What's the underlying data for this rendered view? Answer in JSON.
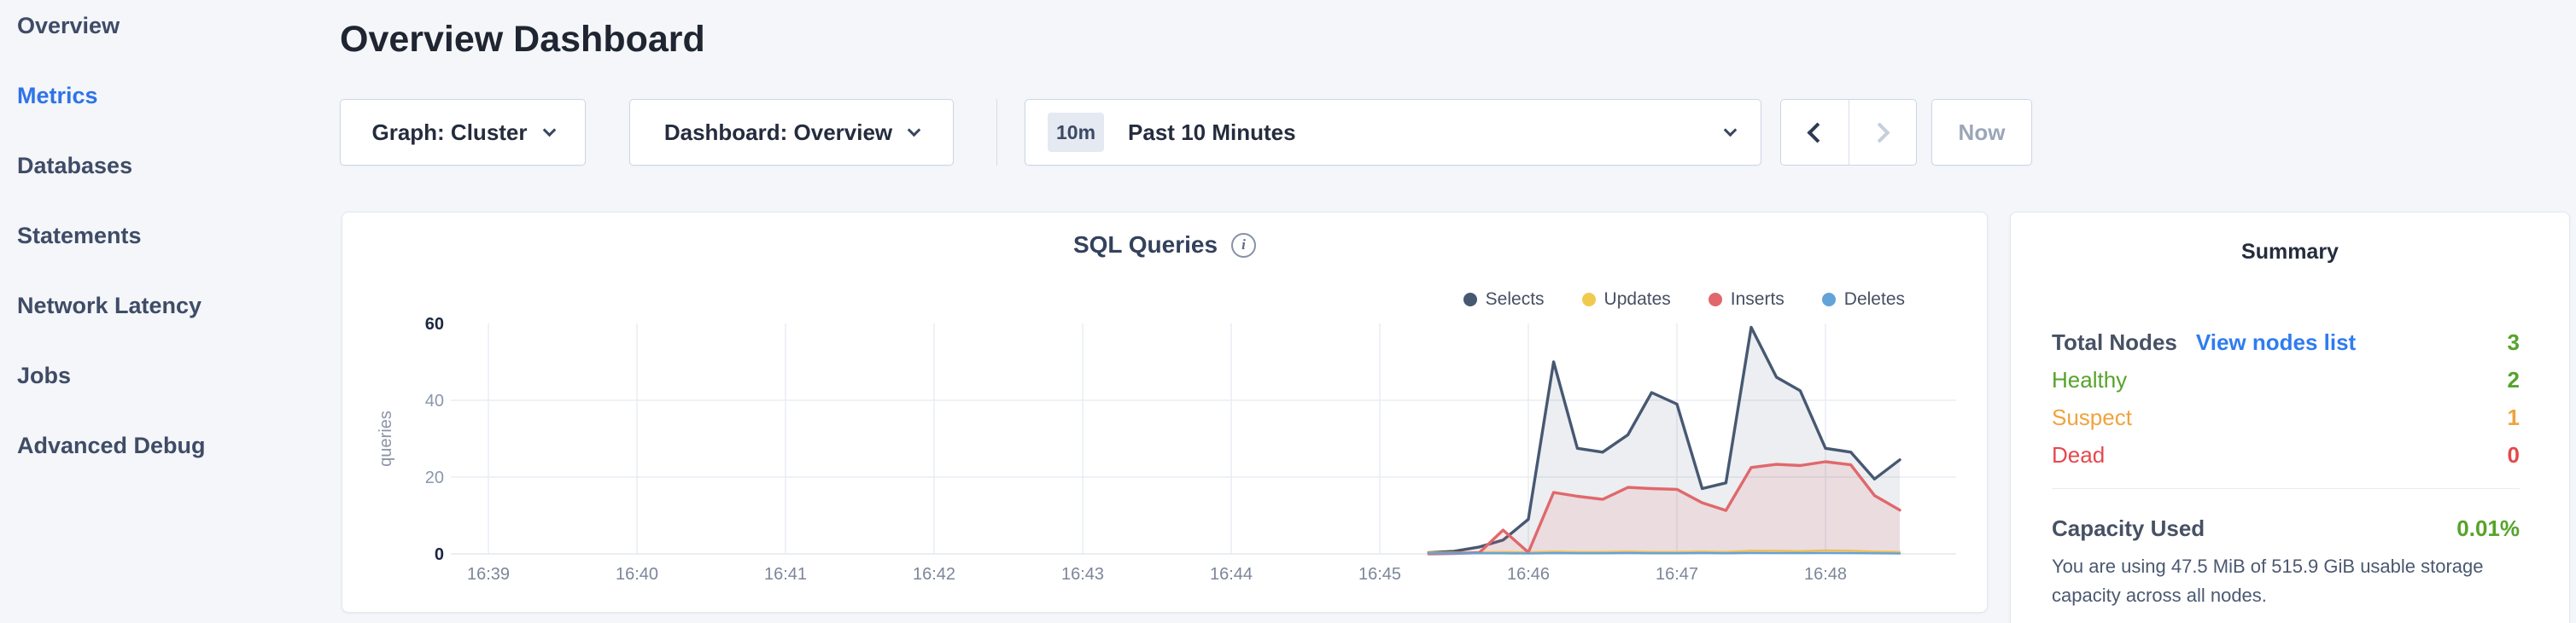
{
  "page": {
    "background": "#f4f6fa",
    "accent_blue": "#2f73e8"
  },
  "sidebar": {
    "items": [
      {
        "label": "Overview",
        "active": false
      },
      {
        "label": "Metrics",
        "active": true
      },
      {
        "label": "Databases",
        "active": false
      },
      {
        "label": "Statements",
        "active": false
      },
      {
        "label": "Network Latency",
        "active": false
      },
      {
        "label": "Jobs",
        "active": false
      },
      {
        "label": "Advanced Debug",
        "active": false
      }
    ]
  },
  "header": {
    "title": "Overview Dashboard"
  },
  "controls": {
    "graph_dropdown_label": "Graph: Cluster",
    "dashboard_dropdown_label": "Dashboard: Overview",
    "time_badge": "10m",
    "time_label": "Past 10 Minutes",
    "now_label": "Now",
    "prev_enabled": true,
    "next_enabled": false,
    "icons": {
      "dropdown": "chevron-down",
      "prev": "chevron-left",
      "next": "chevron-right",
      "info_glyph": "i"
    }
  },
  "chart_data": {
    "type": "area",
    "title": "SQL Queries",
    "ylabel": "queries",
    "ylim": [
      0,
      60
    ],
    "y_ticks": [
      0,
      20,
      40,
      60
    ],
    "y_ticks_bold": [
      0,
      60
    ],
    "x_ticks": [
      "16:39",
      "16:40",
      "16:41",
      "16:42",
      "16:43",
      "16:44",
      "16:45",
      "16:46",
      "16:47",
      "16:48"
    ],
    "x_note": "x values are minutes after 16:39, samples every 10s starting 16:45:20",
    "x": [
      6.33,
      6.5,
      6.67,
      6.83,
      7.0,
      7.17,
      7.33,
      7.5,
      7.67,
      7.83,
      8.0,
      8.17,
      8.33,
      8.5,
      8.67,
      8.83,
      9.0,
      9.17,
      9.33,
      9.5
    ],
    "grid": true,
    "legend_position": "top-right",
    "series": [
      {
        "name": "Selects",
        "color": "#475872",
        "fill": "rgba(71,88,114,0.10)",
        "values": [
          0.3,
          0.7,
          1.8,
          3.6,
          9,
          50,
          27.5,
          26.5,
          31,
          42,
          39,
          17,
          18.5,
          59,
          46,
          42.5,
          27.5,
          26.5,
          19.5,
          24.5
        ]
      },
      {
        "name": "Updates",
        "color": "#f0ca4d",
        "fill": "rgba(240,202,77,0.10)",
        "values": [
          0.3,
          0.3,
          0.4,
          0.5,
          0.4,
          0.6,
          0.5,
          0.5,
          0.6,
          0.5,
          0.5,
          0.6,
          0.5,
          0.8,
          0.8,
          0.7,
          0.9,
          0.8,
          0.6,
          0.5
        ]
      },
      {
        "name": "Inserts",
        "color": "#e0686b",
        "fill": "rgba(224,104,107,0.13)",
        "values": [
          0,
          0.1,
          0.3,
          6.2,
          0.4,
          16,
          15,
          14.2,
          17.3,
          17,
          16.8,
          13.3,
          11.3,
          22.5,
          23.3,
          23,
          24,
          23.2,
          15.2,
          11.4
        ]
      },
      {
        "name": "Deletes",
        "color": "#62a3d9",
        "fill": "rgba(98,163,217,0.10)",
        "values": [
          0.1,
          0.1,
          0.15,
          0.15,
          0.1,
          0.2,
          0.15,
          0.15,
          0.2,
          0.15,
          0.15,
          0.2,
          0.15,
          0.25,
          0.2,
          0.2,
          0.25,
          0.2,
          0.15,
          0.1
        ]
      }
    ]
  },
  "summary": {
    "title": "Summary",
    "rows": [
      {
        "label": "Total Nodes",
        "link": "View nodes list",
        "value": "3",
        "label_color": "#475164",
        "value_color": "#56a32a",
        "bold": true
      },
      {
        "label": "Healthy",
        "value": "2",
        "label_color": "#56a32a",
        "value_color": "#56a32a",
        "bold": false
      },
      {
        "label": "Suspect",
        "value": "1",
        "label_color": "#efa33d",
        "value_color": "#efa33d",
        "bold": false
      },
      {
        "label": "Dead",
        "value": "0",
        "label_color": "#e5484d",
        "value_color": "#e5484d",
        "bold": false
      }
    ],
    "capacity": {
      "label": "Capacity Used",
      "value": "0.01%",
      "value_color": "#56a32a"
    },
    "capacity_note": "You are using 47.5 MiB of 515.9 GiB usable storage capacity across all nodes."
  }
}
